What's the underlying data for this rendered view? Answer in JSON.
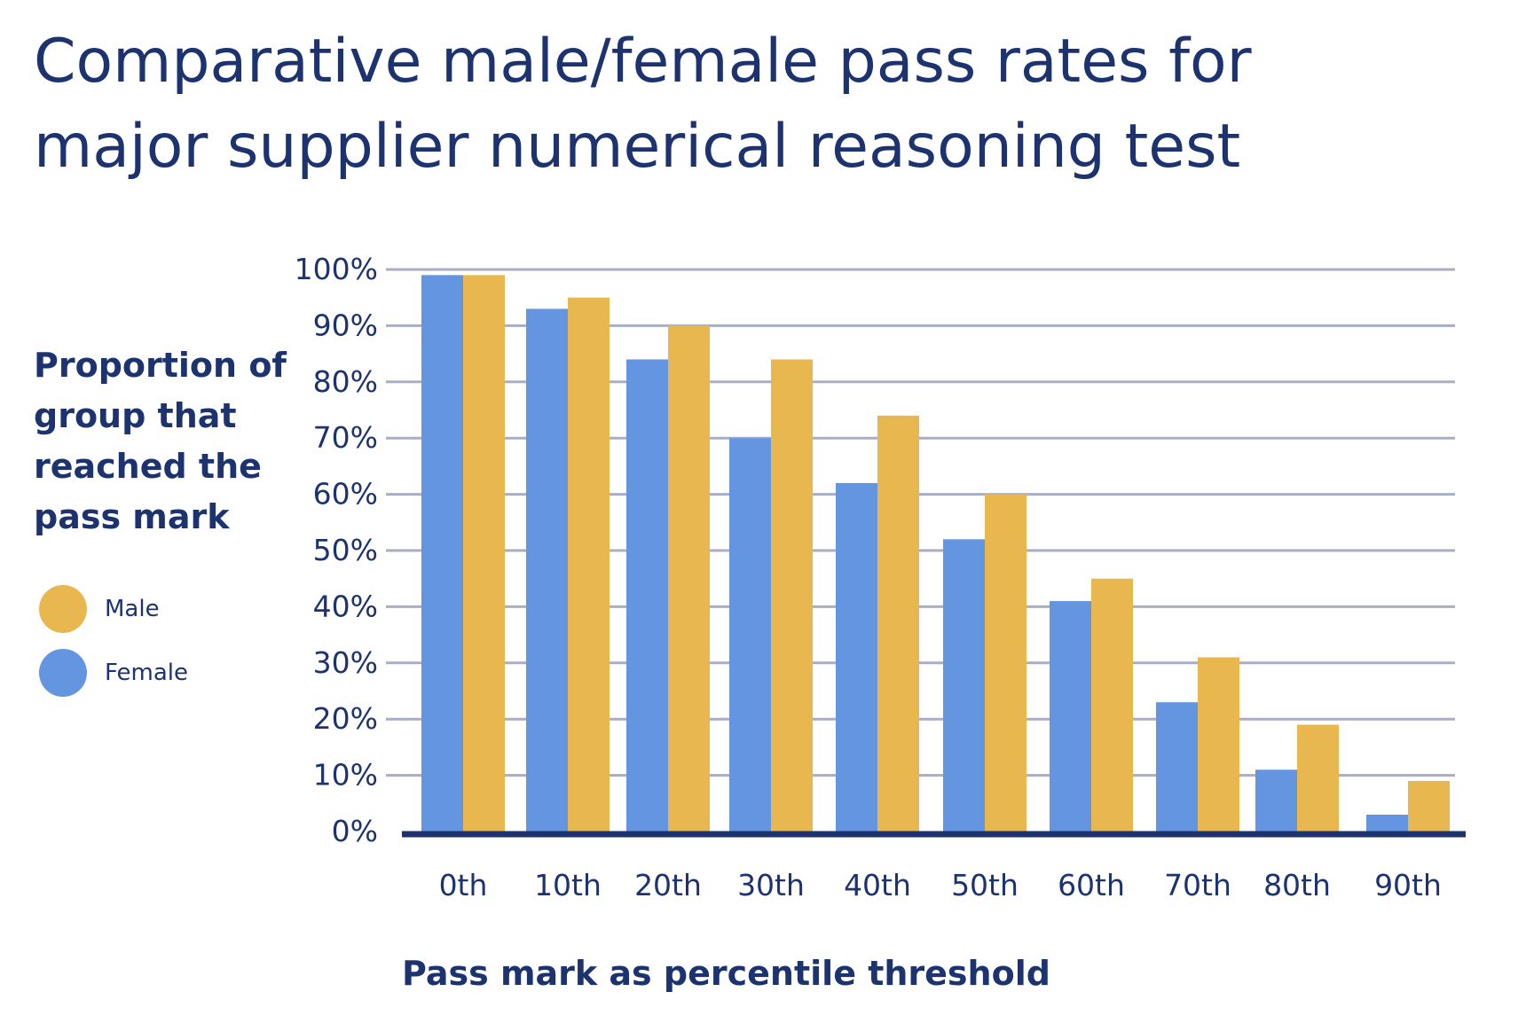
{
  "chart_data": {
    "type": "bar",
    "title_lines": [
      "Comparative male/female pass rates for",
      "major supplier numerical reasoning test"
    ],
    "ylabel_lines": [
      "Proportion of",
      "group that",
      "reached the",
      "pass mark"
    ],
    "xlabel": "Pass mark as percentile threshold",
    "categories": [
      "0th",
      "10th",
      "20th",
      "30th",
      "40th",
      "50th",
      "60th",
      "70th",
      "80th",
      "90th"
    ],
    "series": [
      {
        "name": "Female",
        "color": "#6495e1",
        "values": [
          99,
          93,
          84,
          70,
          62,
          52,
          41,
          23,
          11,
          3
        ]
      },
      {
        "name": "Male",
        "color": "#e9b74f",
        "values": [
          99,
          95,
          90,
          84,
          74,
          60,
          45,
          31,
          19,
          9
        ]
      }
    ],
    "ylim": [
      0,
      100
    ],
    "yticks": [
      "0%",
      "10%",
      "20%",
      "30%",
      "40%",
      "50%",
      "60%",
      "70%",
      "80%",
      "90%",
      "100%"
    ],
    "grid": true,
    "legend_position": "left",
    "legend_order": [
      "Male",
      "Female"
    ],
    "colors": {
      "text": "#1c3370",
      "gridline": "#a9aec4",
      "baseline": "#1c3370"
    }
  }
}
